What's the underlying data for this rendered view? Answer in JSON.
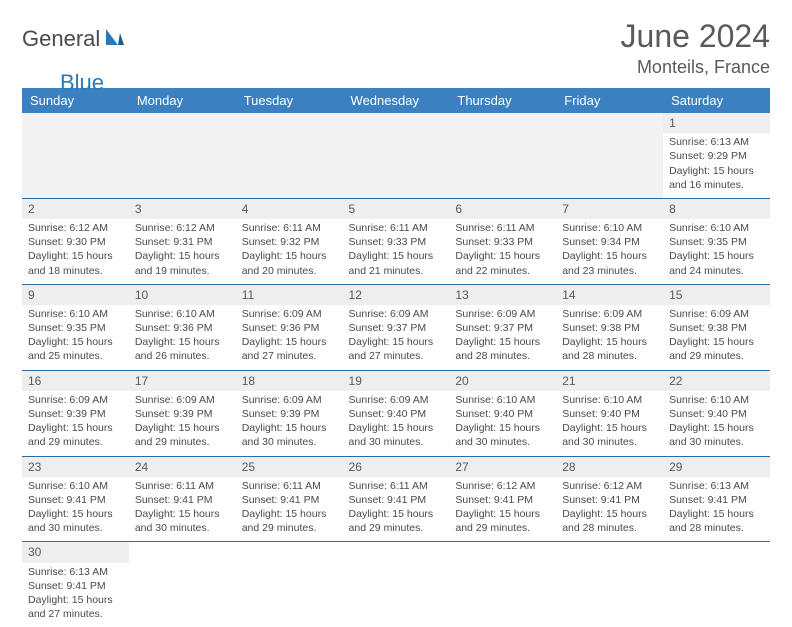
{
  "brand": {
    "part1": "General",
    "part2": "Blue"
  },
  "title": "June 2024",
  "location": "Monteils, France",
  "colors": {
    "header_bg": "#3b81c2",
    "row_divider": "#2a6aa8",
    "daynum_bg": "#eeeeee",
    "text": "#4a4a4a",
    "brand_blue": "#2a7ab9"
  },
  "weekdays": [
    "Sunday",
    "Monday",
    "Tuesday",
    "Wednesday",
    "Thursday",
    "Friday",
    "Saturday"
  ],
  "weeks": [
    [
      null,
      null,
      null,
      null,
      null,
      null,
      {
        "d": "1",
        "sr": "Sunrise: 6:13 AM",
        "ss": "Sunset: 9:29 PM",
        "dl1": "Daylight: 15 hours",
        "dl2": "and 16 minutes."
      }
    ],
    [
      {
        "d": "2",
        "sr": "Sunrise: 6:12 AM",
        "ss": "Sunset: 9:30 PM",
        "dl1": "Daylight: 15 hours",
        "dl2": "and 18 minutes."
      },
      {
        "d": "3",
        "sr": "Sunrise: 6:12 AM",
        "ss": "Sunset: 9:31 PM",
        "dl1": "Daylight: 15 hours",
        "dl2": "and 19 minutes."
      },
      {
        "d": "4",
        "sr": "Sunrise: 6:11 AM",
        "ss": "Sunset: 9:32 PM",
        "dl1": "Daylight: 15 hours",
        "dl2": "and 20 minutes."
      },
      {
        "d": "5",
        "sr": "Sunrise: 6:11 AM",
        "ss": "Sunset: 9:33 PM",
        "dl1": "Daylight: 15 hours",
        "dl2": "and 21 minutes."
      },
      {
        "d": "6",
        "sr": "Sunrise: 6:11 AM",
        "ss": "Sunset: 9:33 PM",
        "dl1": "Daylight: 15 hours",
        "dl2": "and 22 minutes."
      },
      {
        "d": "7",
        "sr": "Sunrise: 6:10 AM",
        "ss": "Sunset: 9:34 PM",
        "dl1": "Daylight: 15 hours",
        "dl2": "and 23 minutes."
      },
      {
        "d": "8",
        "sr": "Sunrise: 6:10 AM",
        "ss": "Sunset: 9:35 PM",
        "dl1": "Daylight: 15 hours",
        "dl2": "and 24 minutes."
      }
    ],
    [
      {
        "d": "9",
        "sr": "Sunrise: 6:10 AM",
        "ss": "Sunset: 9:35 PM",
        "dl1": "Daylight: 15 hours",
        "dl2": "and 25 minutes."
      },
      {
        "d": "10",
        "sr": "Sunrise: 6:10 AM",
        "ss": "Sunset: 9:36 PM",
        "dl1": "Daylight: 15 hours",
        "dl2": "and 26 minutes."
      },
      {
        "d": "11",
        "sr": "Sunrise: 6:09 AM",
        "ss": "Sunset: 9:36 PM",
        "dl1": "Daylight: 15 hours",
        "dl2": "and 27 minutes."
      },
      {
        "d": "12",
        "sr": "Sunrise: 6:09 AM",
        "ss": "Sunset: 9:37 PM",
        "dl1": "Daylight: 15 hours",
        "dl2": "and 27 minutes."
      },
      {
        "d": "13",
        "sr": "Sunrise: 6:09 AM",
        "ss": "Sunset: 9:37 PM",
        "dl1": "Daylight: 15 hours",
        "dl2": "and 28 minutes."
      },
      {
        "d": "14",
        "sr": "Sunrise: 6:09 AM",
        "ss": "Sunset: 9:38 PM",
        "dl1": "Daylight: 15 hours",
        "dl2": "and 28 minutes."
      },
      {
        "d": "15",
        "sr": "Sunrise: 6:09 AM",
        "ss": "Sunset: 9:38 PM",
        "dl1": "Daylight: 15 hours",
        "dl2": "and 29 minutes."
      }
    ],
    [
      {
        "d": "16",
        "sr": "Sunrise: 6:09 AM",
        "ss": "Sunset: 9:39 PM",
        "dl1": "Daylight: 15 hours",
        "dl2": "and 29 minutes."
      },
      {
        "d": "17",
        "sr": "Sunrise: 6:09 AM",
        "ss": "Sunset: 9:39 PM",
        "dl1": "Daylight: 15 hours",
        "dl2": "and 29 minutes."
      },
      {
        "d": "18",
        "sr": "Sunrise: 6:09 AM",
        "ss": "Sunset: 9:39 PM",
        "dl1": "Daylight: 15 hours",
        "dl2": "and 30 minutes."
      },
      {
        "d": "19",
        "sr": "Sunrise: 6:09 AM",
        "ss": "Sunset: 9:40 PM",
        "dl1": "Daylight: 15 hours",
        "dl2": "and 30 minutes."
      },
      {
        "d": "20",
        "sr": "Sunrise: 6:10 AM",
        "ss": "Sunset: 9:40 PM",
        "dl1": "Daylight: 15 hours",
        "dl2": "and 30 minutes."
      },
      {
        "d": "21",
        "sr": "Sunrise: 6:10 AM",
        "ss": "Sunset: 9:40 PM",
        "dl1": "Daylight: 15 hours",
        "dl2": "and 30 minutes."
      },
      {
        "d": "22",
        "sr": "Sunrise: 6:10 AM",
        "ss": "Sunset: 9:40 PM",
        "dl1": "Daylight: 15 hours",
        "dl2": "and 30 minutes."
      }
    ],
    [
      {
        "d": "23",
        "sr": "Sunrise: 6:10 AM",
        "ss": "Sunset: 9:41 PM",
        "dl1": "Daylight: 15 hours",
        "dl2": "and 30 minutes."
      },
      {
        "d": "24",
        "sr": "Sunrise: 6:11 AM",
        "ss": "Sunset: 9:41 PM",
        "dl1": "Daylight: 15 hours",
        "dl2": "and 30 minutes."
      },
      {
        "d": "25",
        "sr": "Sunrise: 6:11 AM",
        "ss": "Sunset: 9:41 PM",
        "dl1": "Daylight: 15 hours",
        "dl2": "and 29 minutes."
      },
      {
        "d": "26",
        "sr": "Sunrise: 6:11 AM",
        "ss": "Sunset: 9:41 PM",
        "dl1": "Daylight: 15 hours",
        "dl2": "and 29 minutes."
      },
      {
        "d": "27",
        "sr": "Sunrise: 6:12 AM",
        "ss": "Sunset: 9:41 PM",
        "dl1": "Daylight: 15 hours",
        "dl2": "and 29 minutes."
      },
      {
        "d": "28",
        "sr": "Sunrise: 6:12 AM",
        "ss": "Sunset: 9:41 PM",
        "dl1": "Daylight: 15 hours",
        "dl2": "and 28 minutes."
      },
      {
        "d": "29",
        "sr": "Sunrise: 6:13 AM",
        "ss": "Sunset: 9:41 PM",
        "dl1": "Daylight: 15 hours",
        "dl2": "and 28 minutes."
      }
    ],
    [
      {
        "d": "30",
        "sr": "Sunrise: 6:13 AM",
        "ss": "Sunset: 9:41 PM",
        "dl1": "Daylight: 15 hours",
        "dl2": "and 27 minutes."
      },
      null,
      null,
      null,
      null,
      null,
      null
    ]
  ]
}
